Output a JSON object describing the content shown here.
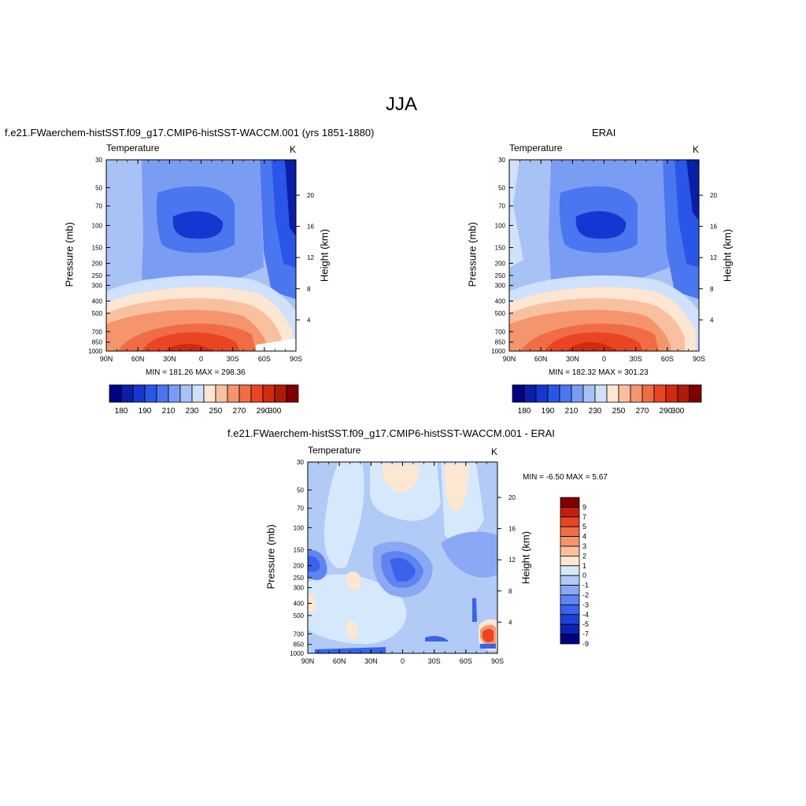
{
  "figure": {
    "title": "JJA"
  },
  "colors": {
    "temperature_levels": [
      "#000080",
      "#0a1fa6",
      "#1537d1",
      "#2a56e8",
      "#4a76f0",
      "#7a9cf2",
      "#a8c2f6",
      "#cfe1fb",
      "#fde6d2",
      "#f9c0a0",
      "#f5956d",
      "#f06c45",
      "#e94523",
      "#d02b10",
      "#b01a08",
      "#800000"
    ],
    "difference_levels": [
      "#000080",
      "#0c24b4",
      "#1e40d8",
      "#3a62ea",
      "#5f84f0",
      "#8aa8f3",
      "#b1caf6",
      "#d6e8fb",
      "#fde6d2",
      "#f9c0a0",
      "#f5956d",
      "#f06c45",
      "#e94523",
      "#c02010",
      "#800000"
    ]
  },
  "panels": [
    {
      "title": "f.e21.FWaerchem-histSST.f09_g17.CMIP6-histSST-WACCM.001 (yrs 1851-1880)",
      "left_label": "Temperature",
      "right_label": "K",
      "stats": "MIN = 181.26  MAX = 298.36"
    },
    {
      "title": "ERAI",
      "left_label": "Temperature",
      "right_label": "K",
      "stats": "MIN = 182.32  MAX = 301.23"
    },
    {
      "title": "f.e21.FWaerchem-histSST.f09_g17.CMIP6-histSST-WACCM.001 - ERAI",
      "left_label": "Temperature",
      "right_label": "K",
      "stats": "MIN =  -6.50  MAX =   5.67"
    }
  ],
  "axes": {
    "ylabel": "Pressure (mb)",
    "ylabel_right": "Height (km)",
    "x_ticks": [
      "90N",
      "60N",
      "30N",
      "0",
      "30S",
      "60S",
      "90S"
    ],
    "y_ticks": [
      "30",
      "50",
      "70",
      "100",
      "150",
      "200",
      "250",
      "300",
      "400",
      "500",
      "700",
      "850",
      "1000"
    ],
    "height_ticks": [
      "20",
      "16",
      "12",
      "8",
      "4"
    ]
  },
  "colorbars": {
    "temperature_labels": [
      "180",
      "190",
      "210",
      "230",
      "250",
      "270",
      "290",
      "300"
    ],
    "difference_labels": [
      "9",
      "7",
      "5",
      "4",
      "3",
      "2",
      "1",
      "0",
      "-1",
      "-2",
      "-3",
      "-4",
      "-5",
      "-7",
      "-9"
    ]
  },
  "chart_data": [
    {
      "type": "heatmap",
      "title": "f.e21.FWaerchem-histSST.f09_g17.CMIP6-histSST-WACCM.001 (yrs 1851-1880)",
      "variable": "Temperature",
      "units": "K",
      "ylabel": "Pressure (mb)",
      "ylabel_right": "Height (km)",
      "x": [
        "90N",
        "60N",
        "30N",
        "0",
        "30S",
        "60S",
        "90S"
      ],
      "y_log_scale": true,
      "ylim": [
        1000,
        30
      ],
      "min": 181.26,
      "max": 298.36,
      "levels": [
        180,
        185,
        190,
        200,
        210,
        220,
        230,
        240,
        250,
        260,
        270,
        280,
        290,
        295,
        300
      ]
    },
    {
      "type": "heatmap",
      "title": "ERAI",
      "variable": "Temperature",
      "units": "K",
      "ylabel": "Pressure (mb)",
      "ylabel_right": "Height (km)",
      "x": [
        "90N",
        "60N",
        "30N",
        "0",
        "30S",
        "60S",
        "90S"
      ],
      "y_log_scale": true,
      "ylim": [
        1000,
        30
      ],
      "min": 182.32,
      "max": 301.23,
      "levels": [
        180,
        185,
        190,
        200,
        210,
        220,
        230,
        240,
        250,
        260,
        270,
        280,
        290,
        295,
        300
      ]
    },
    {
      "type": "heatmap",
      "title": "f.e21.FWaerchem-histSST.f09_g17.CMIP6-histSST-WACCM.001 - ERAI",
      "variable": "Temperature",
      "units": "K",
      "ylabel": "Pressure (mb)",
      "ylabel_right": "Height (km)",
      "x": [
        "90N",
        "60N",
        "30N",
        "0",
        "30S",
        "60S",
        "90S"
      ],
      "y_log_scale": true,
      "ylim": [
        1000,
        30
      ],
      "min": -6.5,
      "max": 5.67,
      "levels": [
        -9,
        -7,
        -5,
        -4,
        -3,
        -2,
        -1,
        0,
        1,
        2,
        3,
        4,
        5,
        7,
        9
      ]
    }
  ]
}
